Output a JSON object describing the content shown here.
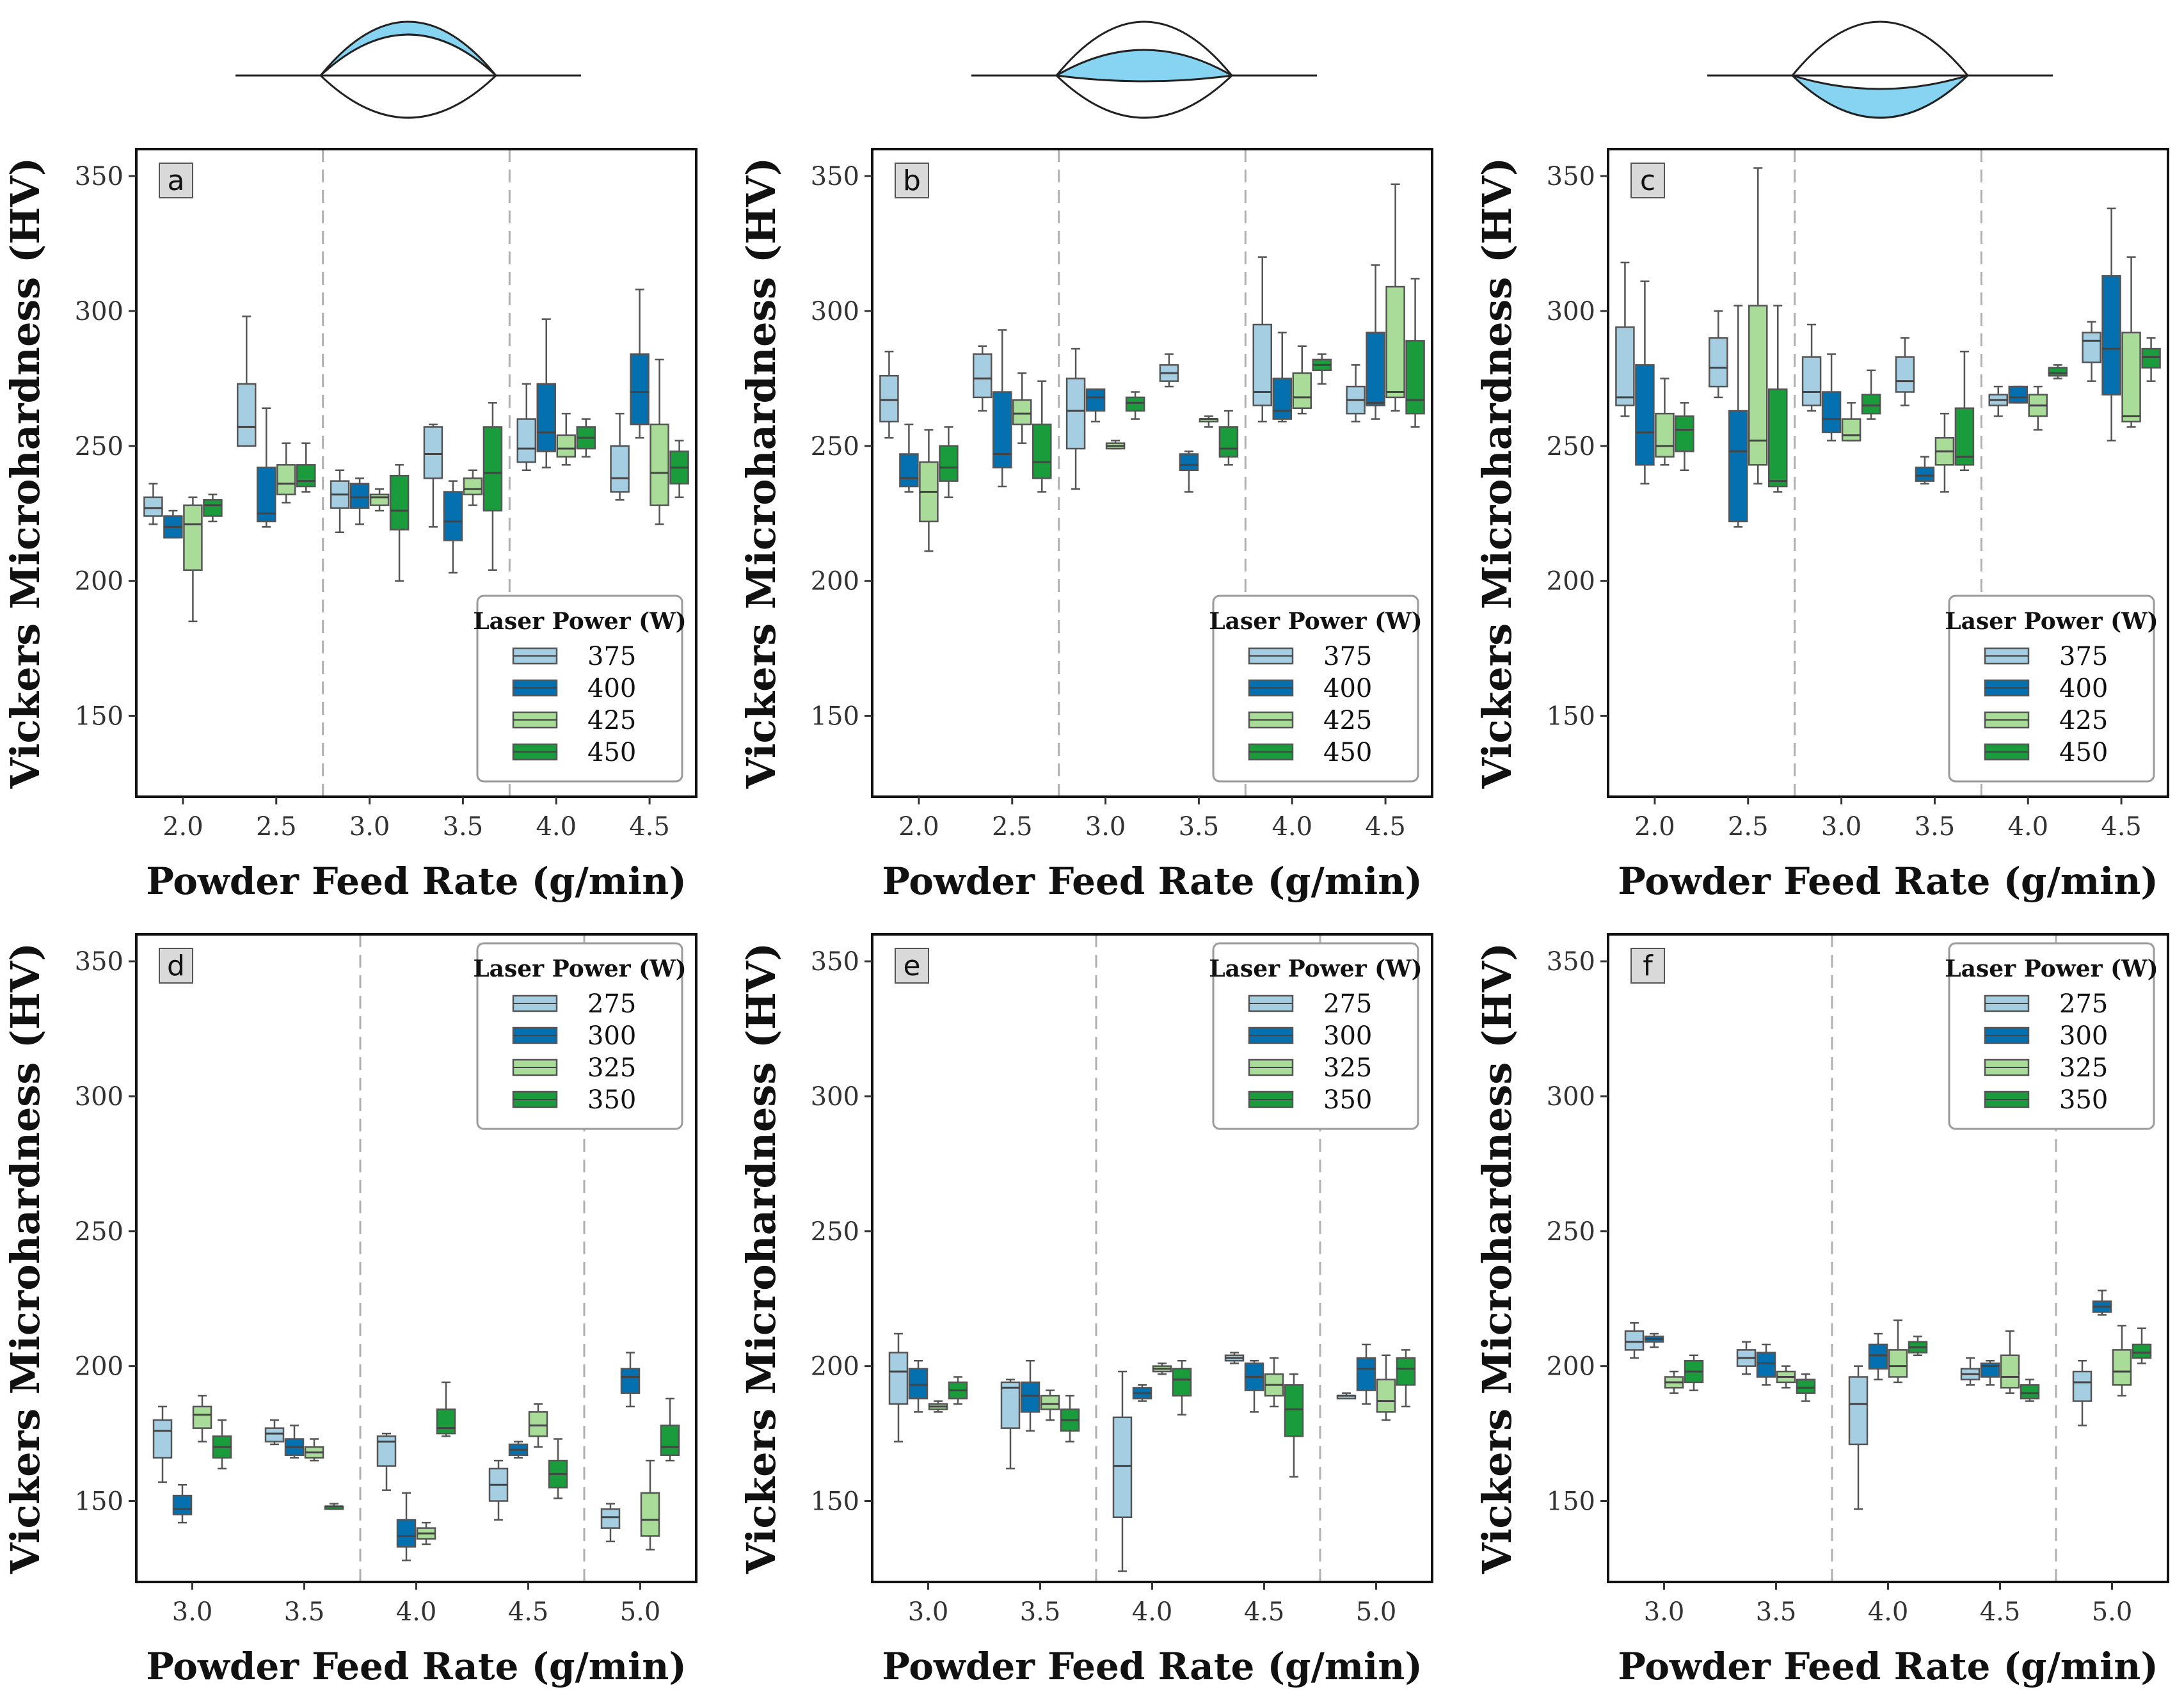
{
  "figure": {
    "xlabel": "Powder Feed Rate (g/min)",
    "ylabel": "Vickers Microhardness (HV)",
    "legend_title": "Laser Power (W)",
    "colors": [
      "#a6cee3",
      "#0570b0",
      "#a8dc98",
      "#1a9c3c"
    ],
    "cross_section_fill": "#87d4f2",
    "cross_section_regions": [
      "top",
      "middle",
      "bottom"
    ]
  },
  "chart_data": [
    {
      "type": "box",
      "label": "a",
      "ylim": [
        120,
        360
      ],
      "yticks": [
        150,
        200,
        250,
        300,
        350
      ],
      "categories": [
        "2.0",
        "2.5",
        "3.0",
        "3.5",
        "4.0",
        "4.5"
      ],
      "separators": [
        1.5,
        3.5
      ],
      "legend": {
        "position": "bottom-right",
        "entries": [
          "375",
          "400",
          "425",
          "450"
        ]
      },
      "boxes": [
        [
          [
            221,
            224,
            227,
            231,
            236
          ],
          [
            220,
            216,
            220,
            224,
            226
          ],
          [
            185,
            204,
            221,
            228,
            231
          ],
          [
            222,
            224,
            228,
            230,
            232
          ]
        ],
        [
          [
            250,
            250,
            257,
            273,
            298
          ],
          [
            220,
            222,
            225,
            242,
            264
          ],
          [
            229,
            232,
            236,
            243,
            251
          ],
          [
            233,
            235,
            237,
            243,
            251
          ]
        ],
        [
          [
            218,
            227,
            232,
            237,
            241
          ],
          [
            221,
            227,
            231,
            236,
            238
          ],
          [
            226,
            228,
            231,
            232,
            234
          ],
          [
            200,
            219,
            226,
            239,
            243
          ]
        ],
        [
          [
            220,
            238,
            247,
            257,
            258
          ],
          [
            203,
            215,
            222,
            233,
            237
          ],
          [
            228,
            232,
            234,
            238,
            241
          ],
          [
            204,
            226,
            240,
            257,
            266
          ]
        ],
        [
          [
            241,
            244,
            249,
            260,
            273
          ],
          [
            242,
            248,
            255,
            273,
            297
          ],
          [
            243,
            246,
            249,
            254,
            262
          ],
          [
            246,
            249,
            253,
            257,
            260
          ]
        ],
        [
          [
            230,
            233,
            238,
            250,
            262
          ],
          [
            253,
            258,
            270,
            284,
            308
          ],
          [
            221,
            228,
            240,
            258,
            282
          ],
          [
            231,
            236,
            242,
            248,
            252
          ]
        ]
      ]
    },
    {
      "type": "box",
      "label": "b",
      "ylim": [
        120,
        360
      ],
      "yticks": [
        150,
        200,
        250,
        300,
        350
      ],
      "categories": [
        "2.0",
        "2.5",
        "3.0",
        "3.5",
        "4.0",
        "4.5"
      ],
      "separators": [
        1.5,
        3.5
      ],
      "legend": {
        "position": "bottom-right",
        "entries": [
          "375",
          "400",
          "425",
          "450"
        ]
      },
      "boxes": [
        [
          [
            253,
            259,
            267,
            276,
            285
          ],
          [
            233,
            235,
            238,
            247,
            258
          ],
          [
            211,
            222,
            233,
            244,
            256
          ],
          [
            231,
            237,
            242,
            250,
            257
          ]
        ],
        [
          [
            263,
            268,
            275,
            284,
            287
          ],
          [
            235,
            242,
            247,
            270,
            293
          ],
          [
            251,
            258,
            262,
            267,
            277
          ],
          [
            233,
            238,
            244,
            258,
            274
          ]
        ],
        [
          [
            234,
            249,
            263,
            275,
            286
          ],
          [
            259,
            263,
            268,
            271,
            271
          ],
          [
            249,
            249,
            250,
            251,
            252
          ],
          [
            260,
            263,
            266,
            268,
            270
          ]
        ],
        [
          [
            272,
            274,
            277,
            280,
            284
          ],
          [
            233,
            241,
            243,
            247,
            248
          ],
          [
            257,
            259,
            260,
            260,
            261
          ],
          [
            243,
            246,
            249,
            257,
            263
          ]
        ],
        [
          [
            259,
            265,
            270,
            295,
            320
          ],
          [
            259,
            260,
            263,
            275,
            292
          ],
          [
            262,
            264,
            268,
            277,
            287
          ],
          [
            273,
            278,
            280,
            282,
            284
          ]
        ],
        [
          [
            259,
            262,
            267,
            272,
            280
          ],
          [
            260,
            265,
            266,
            292,
            317
          ],
          [
            263,
            268,
            270,
            309,
            347
          ],
          [
            257,
            262,
            267,
            289,
            312
          ]
        ]
      ]
    },
    {
      "type": "box",
      "label": "c",
      "ylim": [
        120,
        360
      ],
      "yticks": [
        150,
        200,
        250,
        300,
        350
      ],
      "categories": [
        "2.0",
        "2.5",
        "3.0",
        "3.5",
        "4.0",
        "4.5"
      ],
      "separators": [
        1.5,
        3.5
      ],
      "legend": {
        "position": "bottom-right",
        "entries": [
          "375",
          "400",
          "425",
          "450"
        ]
      },
      "boxes": [
        [
          [
            261,
            265,
            268,
            294,
            318
          ],
          [
            236,
            243,
            255,
            280,
            311
          ],
          [
            243,
            246,
            250,
            262,
            275
          ],
          [
            241,
            248,
            256,
            261,
            266
          ]
        ],
        [
          [
            268,
            272,
            279,
            290,
            300
          ],
          [
            220,
            222,
            248,
            263,
            302
          ],
          [
            236,
            243,
            252,
            302,
            353
          ],
          [
            233,
            235,
            237,
            271,
            302
          ]
        ],
        [
          [
            263,
            265,
            270,
            283,
            295
          ],
          [
            252,
            255,
            260,
            270,
            284
          ],
          [
            252,
            252,
            254,
            260,
            266
          ],
          [
            260,
            262,
            265,
            269,
            278
          ]
        ],
        [
          [
            265,
            270,
            274,
            283,
            290
          ],
          [
            236,
            237,
            239,
            242,
            246
          ],
          [
            233,
            243,
            248,
            253,
            262
          ],
          [
            241,
            243,
            246,
            264,
            285
          ]
        ],
        [
          [
            261,
            265,
            267,
            269,
            272
          ],
          [
            266,
            266,
            268,
            272,
            272
          ],
          [
            256,
            261,
            265,
            269,
            272
          ],
          [
            275,
            276,
            277,
            279,
            280
          ]
        ],
        [
          [
            274,
            281,
            289,
            292,
            296
          ],
          [
            252,
            269,
            286,
            313,
            338
          ],
          [
            257,
            259,
            261,
            292,
            320
          ],
          [
            274,
            279,
            283,
            286,
            290
          ]
        ]
      ]
    },
    {
      "type": "box",
      "label": "d",
      "ylim": [
        120,
        360
      ],
      "yticks": [
        150,
        200,
        250,
        300,
        350
      ],
      "categories": [
        "3.0",
        "3.5",
        "4.0",
        "4.5",
        "5.0"
      ],
      "separators": [
        1.5,
        3.5
      ],
      "legend": {
        "position": "top-right",
        "entries": [
          "275",
          "300",
          "325",
          "350"
        ]
      },
      "boxes": [
        [
          [
            157,
            166,
            176,
            180,
            185
          ],
          [
            142,
            145,
            147,
            152,
            156
          ],
          [
            172,
            177,
            182,
            185,
            189
          ],
          [
            162,
            166,
            170,
            174,
            180
          ]
        ],
        [
          [
            171,
            172,
            175,
            177,
            180
          ],
          [
            166,
            167,
            170,
            173,
            178
          ],
          [
            165,
            166,
            168,
            170,
            173
          ],
          [
            147,
            147,
            148,
            148,
            149
          ]
        ],
        [
          [
            154,
            163,
            172,
            174,
            175
          ],
          [
            128,
            133,
            137,
            143,
            153
          ],
          [
            134,
            136,
            138,
            140,
            142
          ],
          [
            174,
            175,
            177,
            184,
            194
          ]
        ],
        [
          [
            143,
            150,
            156,
            162,
            165
          ],
          [
            166,
            167,
            169,
            171,
            172
          ],
          [
            170,
            174,
            178,
            183,
            186
          ],
          [
            151,
            155,
            160,
            165,
            173
          ]
        ],
        [
          [
            135,
            140,
            144,
            147,
            149
          ],
          [
            185,
            190,
            196,
            199,
            205
          ],
          [
            132,
            137,
            143,
            153,
            165
          ],
          [
            165,
            167,
            170,
            178,
            188
          ]
        ]
      ]
    },
    {
      "type": "box",
      "label": "e",
      "ylim": [
        120,
        360
      ],
      "yticks": [
        150,
        200,
        250,
        300,
        350
      ],
      "categories": [
        "3.0",
        "3.5",
        "4.0",
        "4.5",
        "5.0"
      ],
      "separators": [
        1.5,
        3.5
      ],
      "legend": {
        "position": "top-right",
        "entries": [
          "275",
          "300",
          "325",
          "350"
        ]
      },
      "boxes": [
        [
          [
            172,
            186,
            198,
            205,
            212
          ],
          [
            183,
            188,
            193,
            199,
            202
          ],
          [
            183,
            184,
            185,
            186,
            187
          ],
          [
            186,
            188,
            191,
            194,
            196
          ]
        ],
        [
          [
            162,
            177,
            192,
            194,
            195
          ],
          [
            176,
            183,
            189,
            194,
            202
          ],
          [
            180,
            184,
            186,
            189,
            191
          ],
          [
            172,
            176,
            180,
            184,
            189
          ]
        ],
        [
          [
            124,
            144,
            163,
            181,
            198
          ],
          [
            187,
            188,
            190,
            192,
            193
          ],
          [
            197,
            198,
            199,
            200,
            201
          ],
          [
            182,
            189,
            195,
            199,
            202
          ]
        ],
        [
          [
            201,
            202,
            203,
            204,
            205
          ],
          [
            183,
            191,
            196,
            201,
            202
          ],
          [
            185,
            189,
            193,
            197,
            203
          ],
          [
            159,
            174,
            184,
            193,
            197
          ]
        ],
        [
          [
            188,
            188,
            189,
            189,
            190
          ],
          [
            186,
            191,
            199,
            203,
            208
          ],
          [
            180,
            183,
            187,
            195,
            204
          ],
          [
            185,
            193,
            199,
            203,
            206
          ]
        ]
      ]
    },
    {
      "type": "box",
      "label": "f",
      "ylim": [
        120,
        360
      ],
      "yticks": [
        150,
        200,
        250,
        300,
        350
      ],
      "categories": [
        "3.0",
        "3.5",
        "4.0",
        "4.5",
        "5.0"
      ],
      "separators": [
        1.5,
        3.5
      ],
      "legend": {
        "position": "top-right",
        "entries": [
          "275",
          "300",
          "325",
          "350"
        ]
      },
      "boxes": [
        [
          [
            203,
            206,
            209,
            213,
            216
          ],
          [
            207,
            209,
            210,
            211,
            212
          ],
          [
            190,
            192,
            194,
            196,
            198
          ],
          [
            191,
            194,
            198,
            202,
            204
          ]
        ],
        [
          [
            197,
            200,
            203,
            206,
            209
          ],
          [
            193,
            196,
            201,
            205,
            208
          ],
          [
            192,
            194,
            196,
            198,
            200
          ],
          [
            187,
            190,
            192,
            195,
            197
          ]
        ],
        [
          [
            147,
            171,
            186,
            196,
            200
          ],
          [
            195,
            199,
            204,
            208,
            212
          ],
          [
            194,
            196,
            200,
            206,
            217
          ],
          [
            204,
            205,
            207,
            209,
            211
          ]
        ],
        [
          [
            193,
            195,
            197,
            199,
            203
          ],
          [
            193,
            196,
            200,
            201,
            202
          ],
          [
            190,
            192,
            196,
            204,
            213
          ],
          [
            187,
            188,
            190,
            193,
            195
          ]
        ],
        [
          [
            178,
            187,
            194,
            198,
            202
          ],
          [
            219,
            220,
            222,
            224,
            228
          ],
          [
            189,
            193,
            198,
            206,
            215
          ],
          [
            201,
            203,
            205,
            208,
            214
          ]
        ]
      ]
    }
  ]
}
